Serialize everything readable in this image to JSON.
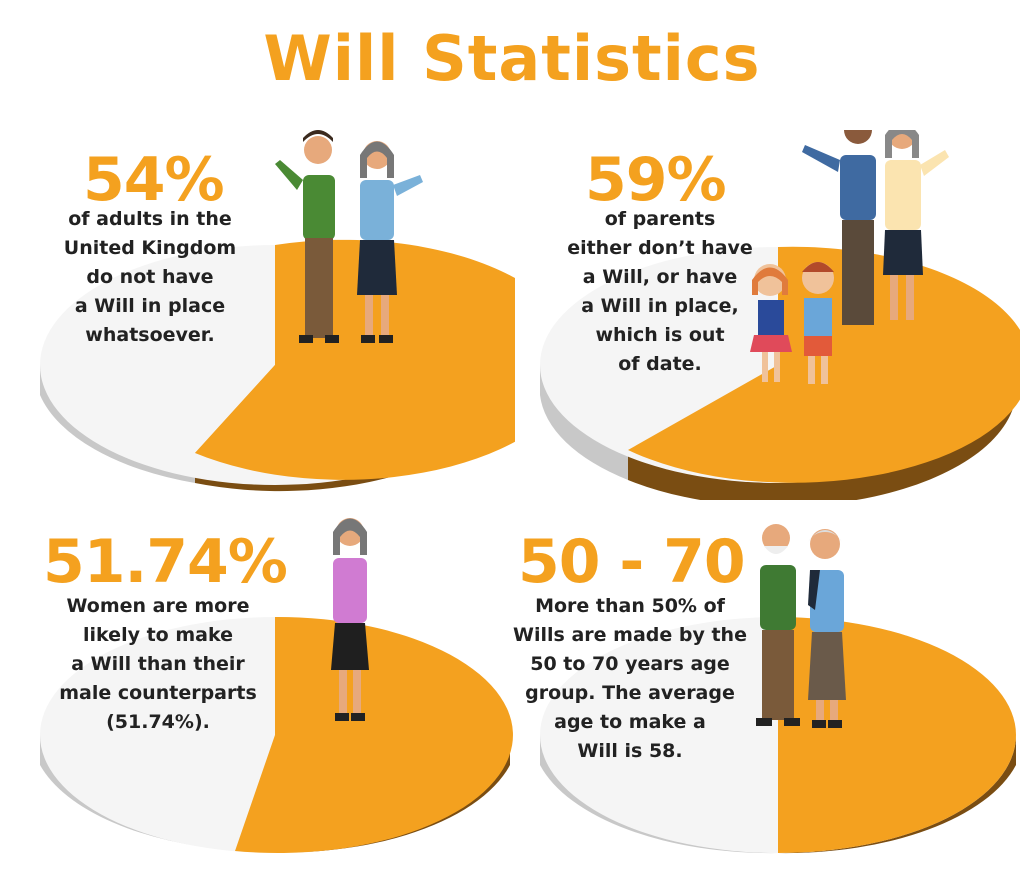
{
  "title": "Will Statistics",
  "colors": {
    "accent": "#f4a11f",
    "pie_light": "#f5f5f5",
    "pie_side_light": "#c8c8c8",
    "pie_side_dark": "#7a4d12"
  },
  "panels": [
    {
      "stat": "54%",
      "share": 0.54,
      "lines": [
        "of adults in the",
        "United Kingdom",
        "do not have",
        "a Will in place",
        "whatsoever."
      ],
      "figures": "couple-icon"
    },
    {
      "stat": "59%",
      "share": 0.59,
      "lines": [
        "of parents",
        "either don’t have",
        "a Will, or have",
        "a Will in place,",
        "which is out",
        "of date."
      ],
      "figures": "family-icon"
    },
    {
      "stat": "51.74%",
      "share": 0.5174,
      "lines": [
        "Women are more",
        "likely to make",
        "a Will than their",
        "male counterparts",
        "(51.74%)."
      ],
      "figures": "woman-icon"
    },
    {
      "stat": "50 - 70",
      "share": 0.5,
      "lines": [
        "More than 50% of",
        "Wills are made by the",
        "50 to 70 years age",
        "group. The average",
        "age to make a",
        "Will is 58."
      ],
      "figures": "elderly-couple-icon"
    }
  ]
}
